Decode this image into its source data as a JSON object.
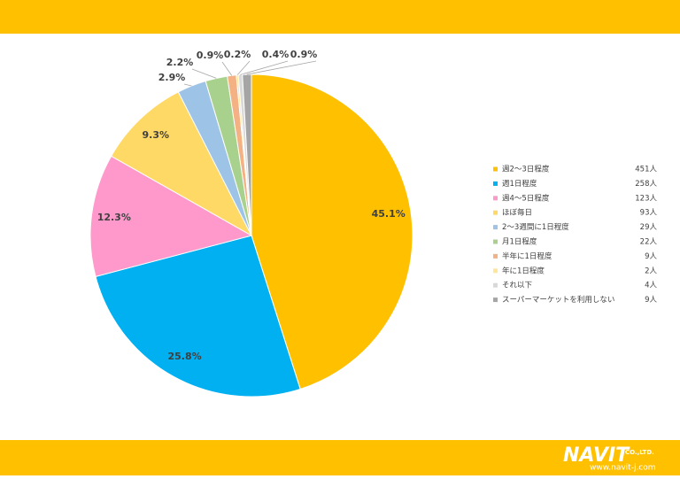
{
  "chart_data": {
    "type": "pie",
    "categories": [
      "週2〜3日程度",
      "週1日程度",
      "週4〜5日程度",
      "ほぼ毎日",
      "2〜3週間に1日程度",
      "月1日程度",
      "半年に1日程度",
      "年に1日程度",
      "それ以下",
      "スーパーマーケットを利用しない"
    ],
    "values": [
      45.1,
      25.8,
      12.3,
      9.3,
      2.9,
      2.2,
      0.9,
      0.2,
      0.4,
      0.9
    ],
    "value_labels": [
      "45.1%",
      "25.8%",
      "12.3%",
      "9.3%",
      "2.9%",
      "2.2%",
      "0.9%",
      "0.2%",
      "0.4%",
      "0.9%"
    ],
    "legend_counts": [
      "451人",
      "258人",
      "123人",
      "93人",
      "29人",
      "22人",
      "9人",
      "2人",
      "4人",
      "9人"
    ],
    "colors": [
      "#FFC000",
      "#00B0F0",
      "#FF99CC",
      "#FFD966",
      "#9DC3E6",
      "#A9D18E",
      "#F4B183",
      "#FFE699",
      "#D9D9D9",
      "#A5A5A5"
    ],
    "legend_position": "right"
  },
  "footer": {
    "logo": "NAVIT",
    "company": "CO.,LTD.",
    "url": "www.navit-j.com"
  }
}
